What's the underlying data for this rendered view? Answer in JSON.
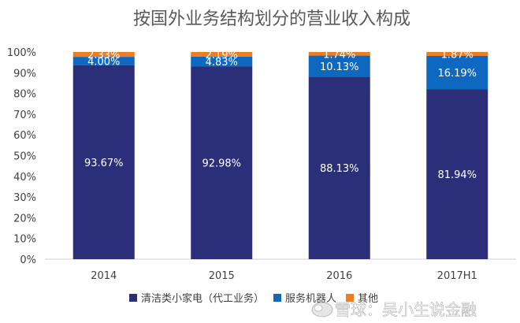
{
  "chart_data": {
    "type": "bar",
    "stacked": true,
    "percent": true,
    "title": "按国外业务结构划分的营业收入构成",
    "categories": [
      "2014",
      "2015",
      "2016",
      "2017H1"
    ],
    "series": [
      {
        "name": "清洁类小家电（代工业务）",
        "values": [
          93.67,
          92.98,
          88.13,
          81.94
        ],
        "labels": [
          "93.67%",
          "92.98%",
          "88.13%",
          "81.94%"
        ],
        "color": "#2b2f7a"
      },
      {
        "name": "服务机器人",
        "values": [
          4.0,
          4.83,
          10.13,
          16.19
        ],
        "labels": [
          "4.00%",
          "4.83%",
          "10.13%",
          "16.19%"
        ],
        "color": "#0e68c0"
      },
      {
        "name": "其他",
        "values": [
          2.33,
          2.19,
          1.74,
          1.87
        ],
        "labels": [
          "2.33%",
          "2.19%",
          "1.74%",
          "1.87%"
        ],
        "color": "#f07c1e"
      }
    ],
    "ylim": [
      0,
      100
    ],
    "y_ticks": [
      "0%",
      "10%",
      "20%",
      "30%",
      "40%",
      "50%",
      "60%",
      "70%",
      "80%",
      "90%",
      "100%"
    ],
    "grid": false,
    "legend_position": "bottom"
  },
  "watermark": {
    "text": "雪球：吴小生说金融"
  }
}
